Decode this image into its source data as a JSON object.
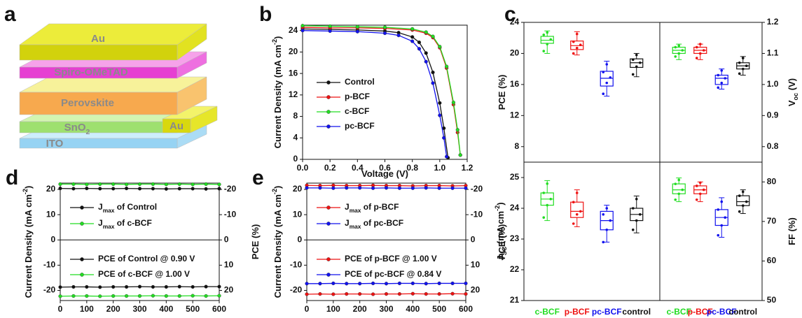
{
  "diagram": {
    "panel": "a",
    "layers": [
      [
        {
          "text": "Au"
        }
      ],
      [
        {
          "text": "Spiro-OMeTAD"
        }
      ],
      [
        {
          "text": "Perovskite"
        }
      ],
      [
        {
          "text": "SnO"
        },
        {
          "text": "2",
          "shift": "sub"
        }
      ],
      [
        {
          "text": "ITO"
        }
      ]
    ],
    "electrode": "Au"
  },
  "chart_data": [
    {
      "type": "line",
      "panel": "b",
      "xlabel": [
        {
          "text": "Voltage (V)"
        }
      ],
      "ylabel": [
        {
          "text": "Current Density (mA cm"
        },
        {
          "text": "-2",
          "shift": "super"
        },
        {
          "text": ")"
        }
      ],
      "xlim": [
        0,
        1.2
      ],
      "xticks": [
        {
          "value": 0,
          "label": "0.0"
        },
        0.2,
        0.4,
        0.6,
        0.8,
        {
          "value": 1,
          "label": "1.0"
        },
        1.2
      ],
      "ylim": [
        0,
        25
      ],
      "yticks": [
        0,
        4,
        8,
        12,
        16,
        20,
        24
      ],
      "legend": "left",
      "series": [
        {
          "name": "Control",
          "color": "#111111",
          "x": [
            0,
            0.2,
            0.4,
            0.6,
            0.7,
            0.8,
            0.85,
            0.9,
            0.95,
            1.0,
            1.03,
            1.06
          ],
          "values": [
            24.3,
            24.2,
            24.1,
            23.9,
            23.6,
            22.8,
            21.8,
            19.8,
            16.2,
            10.5,
            5.8,
            0.3
          ]
        },
        {
          "name": "p-BCF",
          "color": "#ee1111",
          "x": [
            0,
            0.2,
            0.4,
            0.6,
            0.8,
            0.9,
            0.95,
            1.0,
            1.05,
            1.1,
            1.13,
            1.15
          ],
          "values": [
            24.6,
            24.5,
            24.5,
            24.4,
            24.1,
            23.5,
            22.7,
            20.8,
            17.0,
            10.2,
            5.0,
            0.8
          ]
        },
        {
          "name": "c-BCF",
          "color": "#22dd22",
          "x": [
            0,
            0.2,
            0.4,
            0.6,
            0.8,
            0.9,
            0.95,
            1.0,
            1.05,
            1.1,
            1.13,
            1.15
          ],
          "values": [
            24.9,
            24.8,
            24.7,
            24.6,
            24.3,
            23.7,
            22.9,
            21.0,
            17.3,
            10.6,
            5.5,
            0.8
          ]
        },
        {
          "name": "pc-BCF",
          "color": "#1111ee",
          "x": [
            0,
            0.2,
            0.4,
            0.6,
            0.7,
            0.8,
            0.85,
            0.9,
            0.95,
            1.0,
            1.03,
            1.05
          ],
          "values": [
            24.0,
            23.9,
            23.8,
            23.5,
            23.1,
            22.0,
            20.6,
            18.2,
            14.2,
            8.2,
            4.0,
            0.5
          ]
        }
      ]
    },
    {
      "type": "box",
      "panel": "c",
      "ylabel": [
        {
          "text": "PCE (%)"
        }
      ],
      "axis_side": "left",
      "ylim": [
        6,
        24
      ],
      "yticks": [
        8,
        12,
        16,
        20,
        24
      ],
      "colors": [
        "#22dd22",
        "#ee1111",
        "#1111ee",
        "#111111"
      ],
      "boxes": [
        {
          "min": 20.0,
          "q1": 21.3,
          "median": 21.7,
          "q3": 22.2,
          "max": 22.9,
          "points": [
            20.3,
            21.2,
            21.8,
            22.4,
            22.7
          ]
        },
        {
          "min": 19.8,
          "q1": 20.5,
          "median": 21.0,
          "q3": 21.6,
          "max": 22.8,
          "points": [
            20.0,
            20.7,
            21.1,
            21.5,
            22.5
          ]
        },
        {
          "min": 14.5,
          "q1": 15.8,
          "median": 16.8,
          "q3": 17.7,
          "max": 19.0,
          "points": [
            14.8,
            16.2,
            16.9,
            17.6,
            18.6
          ]
        },
        {
          "min": 17.0,
          "q1": 18.2,
          "median": 18.8,
          "q3": 19.3,
          "max": 20.0,
          "points": [
            17.3,
            18.3,
            18.8,
            19.2,
            19.8
          ]
        }
      ]
    },
    {
      "type": "box",
      "ylabel": [
        {
          "text": "V"
        },
        {
          "text": "oc",
          "shift": "sub"
        },
        {
          "text": " (V)"
        }
      ],
      "axis_side": "right",
      "ylim": [
        0.75,
        1.2
      ],
      "yticks": [
        0.8,
        0.9,
        {
          "value": 1,
          "label": "1.0"
        },
        1.1,
        1.2
      ],
      "colors": [
        "#22dd22",
        "#ee1111",
        "#1111ee",
        "#111111"
      ],
      "boxes": [
        {
          "min": 1.08,
          "q1": 1.1,
          "median": 1.11,
          "q3": 1.12,
          "max": 1.13,
          "points": [
            1.09,
            1.1,
            1.11,
            1.12,
            1.125
          ]
        },
        {
          "min": 1.08,
          "q1": 1.1,
          "median": 1.11,
          "q3": 1.12,
          "max": 1.13,
          "points": [
            1.085,
            1.1,
            1.11,
            1.12,
            1.13
          ]
        },
        {
          "min": 0.985,
          "q1": 1.0,
          "median": 1.02,
          "q3": 1.03,
          "max": 1.05,
          "points": [
            0.99,
            1.005,
            1.02,
            1.03,
            1.045
          ]
        },
        {
          "min": 1.03,
          "q1": 1.05,
          "median": 1.06,
          "q3": 1.07,
          "max": 1.09,
          "points": [
            1.035,
            1.05,
            1.06,
            1.07,
            1.085
          ]
        }
      ]
    },
    {
      "type": "box",
      "ylabel": [
        {
          "text": "J"
        },
        {
          "text": "SC",
          "shift": "sub"
        },
        {
          "text": " (mA cm"
        },
        {
          "text": "-2",
          "shift": "super"
        },
        {
          "text": ")"
        }
      ],
      "axis_side": "left",
      "ylim": [
        21,
        25.5
      ],
      "yticks": [
        21,
        22,
        23,
        24,
        25
      ],
      "categories": [
        "c-BCF",
        "p-BCF",
        "pc-BCF",
        "control"
      ],
      "colors": [
        "#22dd22",
        "#ee1111",
        "#1111ee",
        "#111111"
      ],
      "boxes": [
        {
          "min": 23.6,
          "q1": 24.1,
          "median": 24.3,
          "q3": 24.5,
          "max": 24.9,
          "points": [
            23.7,
            24.1,
            24.3,
            24.5,
            24.8
          ]
        },
        {
          "min": 23.4,
          "q1": 23.7,
          "median": 23.9,
          "q3": 24.2,
          "max": 24.6,
          "points": [
            23.5,
            23.8,
            23.9,
            24.2,
            24.5
          ]
        },
        {
          "min": 22.9,
          "q1": 23.3,
          "median": 23.6,
          "q3": 23.9,
          "max": 24.1,
          "points": [
            22.9,
            23.3,
            23.6,
            23.8,
            24.0
          ]
        },
        {
          "min": 23.2,
          "q1": 23.6,
          "median": 23.8,
          "q3": 24.0,
          "max": 24.4,
          "points": [
            23.3,
            23.6,
            23.8,
            24.0,
            24.3
          ]
        }
      ]
    },
    {
      "type": "box",
      "ylabel": [
        {
          "text": "FF (%)"
        }
      ],
      "axis_side": "right",
      "ylim": [
        50,
        85
      ],
      "yticks": [
        50,
        60,
        70,
        80
      ],
      "categories": [
        "c-BCF",
        "p-BCF",
        "pc-BCF",
        "control"
      ],
      "colors": [
        "#22dd22",
        "#ee1111",
        "#1111ee",
        "#111111"
      ],
      "boxes": [
        {
          "min": 75,
          "q1": 77,
          "median": 78,
          "q3": 79.5,
          "max": 81,
          "points": [
            75.5,
            77,
            78,
            79.5,
            80.5
          ]
        },
        {
          "min": 75,
          "q1": 77,
          "median": 78,
          "q3": 79,
          "max": 80,
          "points": [
            75.5,
            77,
            78,
            79,
            79.8
          ]
        },
        {
          "min": 66,
          "q1": 69,
          "median": 71,
          "q3": 73,
          "max": 76,
          "points": [
            66.5,
            69,
            71,
            73,
            75
          ]
        },
        {
          "min": 72,
          "q1": 74,
          "median": 75,
          "q3": 76.5,
          "max": 78,
          "points": [
            72.5,
            74,
            75,
            76.5,
            77.5
          ]
        }
      ]
    },
    {
      "type": "line",
      "panel": "d",
      "ylabel": [
        {
          "text": "Current Density (mA cm"
        },
        {
          "text": "-2",
          "shift": "super"
        },
        {
          "text": ")"
        }
      ],
      "y2label": [
        {
          "text": "PCE (%)"
        }
      ],
      "xlim": [
        0,
        600
      ],
      "xticks": [
        0,
        100,
        200,
        300,
        400,
        500,
        600
      ],
      "ylim": [
        -24,
        22.5
      ],
      "yticks": [
        -20,
        -10,
        0,
        10,
        20
      ],
      "y2lim": [
        24,
        -22.5
      ],
      "y2ticks": [
        -20,
        -10,
        0,
        10,
        20
      ],
      "x": [
        0,
        50,
        100,
        150,
        200,
        250,
        300,
        350,
        400,
        450,
        500,
        550,
        600
      ],
      "series": [
        {
          "name": [
            {
              "text": "J"
            },
            {
              "text": "max",
              "shift": "sub"
            },
            {
              "text": " of Control"
            }
          ],
          "color": "#111111",
          "values": [
            20.4,
            20.3,
            20.4,
            20.3,
            20.3,
            20.4,
            20.3,
            20.3,
            20.2,
            20.3,
            20.3,
            20.2,
            20.3
          ]
        },
        {
          "name": [
            {
              "text": "J"
            },
            {
              "text": "max",
              "shift": "sub"
            },
            {
              "text": " of c-BCF"
            }
          ],
          "color": "#22dd22",
          "values": [
            22.1,
            22.1,
            22.0,
            22.1,
            22.1,
            22.0,
            22.1,
            22.1,
            22.0,
            22.1,
            22.0,
            22.1,
            22.0
          ]
        },
        {
          "name": "PCE of Control @ 0.90 V",
          "color": "#111111",
          "axis": "y2",
          "values": [
            18.7,
            18.6,
            18.6,
            18.7,
            18.6,
            18.6,
            18.5,
            18.6,
            18.6,
            18.5,
            18.6,
            18.5,
            18.5
          ]
        },
        {
          "name": "PCE of c-BCF @ 1.00 V",
          "color": "#22dd22",
          "axis": "y2",
          "values": [
            22.3,
            22.2,
            22.2,
            22.3,
            22.2,
            22.2,
            22.2,
            22.1,
            22.2,
            22.2,
            22.1,
            22.2,
            22.1
          ]
        }
      ]
    },
    {
      "type": "line",
      "panel": "e",
      "ylabel": [
        {
          "text": "Current Density (mA cm"
        },
        {
          "text": "-2",
          "shift": "super"
        },
        {
          "text": ")"
        }
      ],
      "y2label": [
        {
          "text": "PCE (%)"
        }
      ],
      "xlim": [
        0,
        600
      ],
      "xticks": [
        0,
        100,
        200,
        300,
        400,
        500,
        600
      ],
      "ylim": [
        -24,
        22.5
      ],
      "yticks": [
        -20,
        -10,
        0,
        10,
        20
      ],
      "y2lim": [
        24,
        -22.5
      ],
      "y2ticks": [
        -20,
        -10,
        0,
        10,
        20
      ],
      "x": [
        0,
        50,
        100,
        150,
        200,
        250,
        300,
        350,
        400,
        450,
        500,
        550,
        600
      ],
      "series": [
        {
          "name": [
            {
              "text": "J"
            },
            {
              "text": "max",
              "shift": "sub"
            },
            {
              "text": " of p-BCF"
            }
          ],
          "color": "#ee1111",
          "values": [
            21.6,
            21.5,
            21.6,
            21.5,
            21.5,
            21.6,
            21.5,
            21.5,
            21.4,
            21.5,
            21.5,
            21.4,
            21.5
          ]
        },
        {
          "name": [
            {
              "text": "J"
            },
            {
              "text": "max",
              "shift": "sub"
            },
            {
              "text": " of pc-BCF"
            }
          ],
          "color": "#1111ee",
          "values": [
            20.6,
            20.6,
            20.5,
            20.6,
            20.6,
            20.5,
            20.6,
            20.5,
            20.5,
            20.6,
            20.5,
            20.5,
            20.5
          ]
        },
        {
          "name": "PCE of p-BCF @ 1.00 V",
          "color": "#ee1111",
          "axis": "y2",
          "values": [
            21.5,
            21.4,
            21.5,
            21.4,
            21.4,
            21.5,
            21.4,
            21.4,
            21.3,
            21.4,
            21.4,
            21.3,
            21.4
          ]
        },
        {
          "name": "PCE of pc-BCF @ 0.84 V",
          "color": "#1111ee",
          "axis": "y2",
          "values": [
            17.3,
            17.3,
            17.2,
            17.3,
            17.3,
            17.2,
            17.3,
            17.2,
            17.2,
            17.3,
            17.2,
            17.2,
            17.2
          ]
        }
      ]
    }
  ]
}
